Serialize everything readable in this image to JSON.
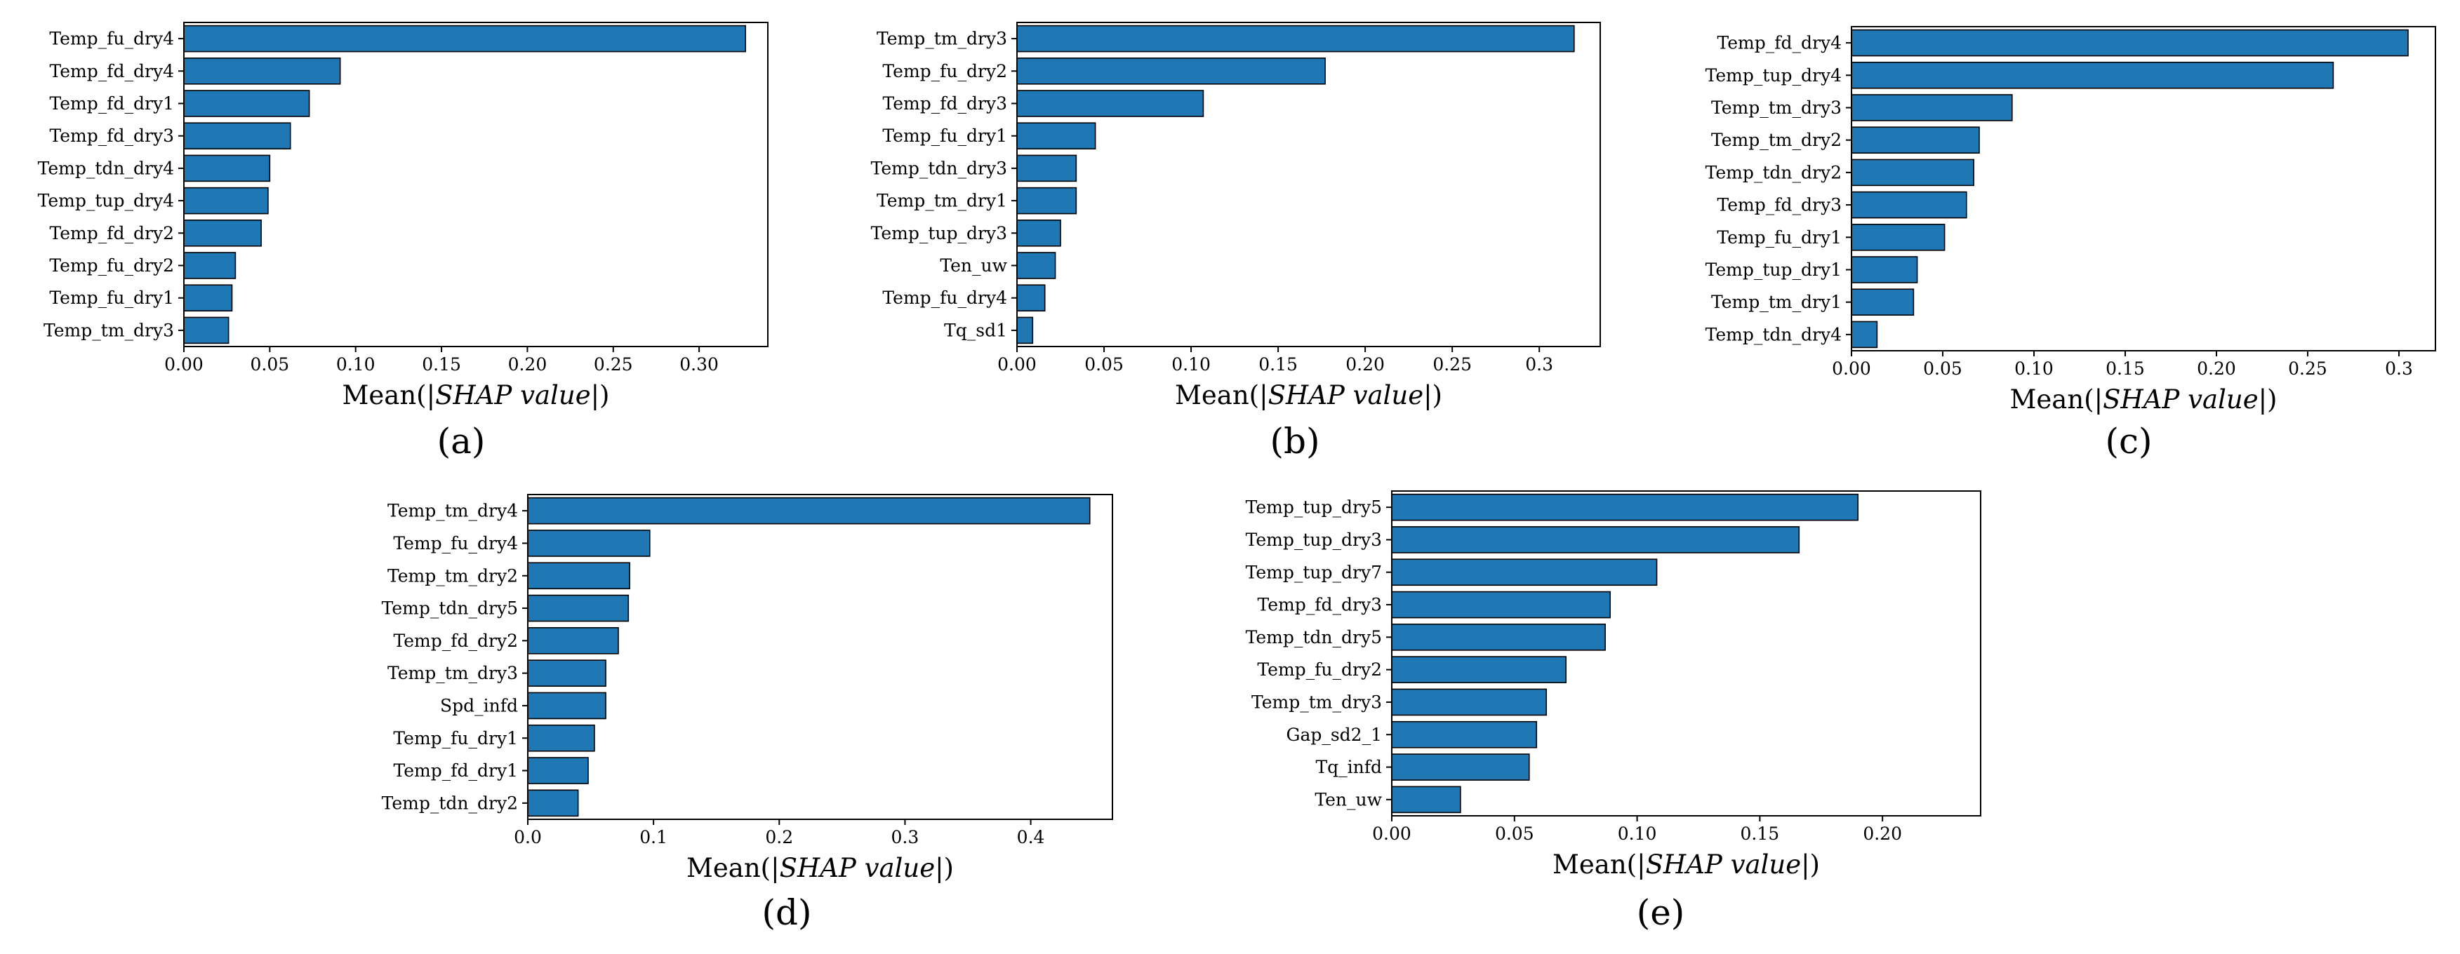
{
  "colors": {
    "bar": "#1f77b4",
    "edge": "#000000"
  },
  "chart_data": [
    {
      "type": "bar",
      "orientation": "horizontal",
      "panel_label": "(a)",
      "xlabel": {
        "prefix": "Mean(|",
        "italic": "SHAP value",
        "suffix": "|)"
      },
      "xlim": [
        0,
        0.34
      ],
      "xticks": [
        0,
        0.05,
        0.1,
        0.15,
        0.2,
        0.25,
        0.3
      ],
      "xtick_labels": [
        "0.00",
        "0.05",
        "0.10",
        "0.15",
        "0.20",
        "0.25",
        "0.30"
      ],
      "categories": [
        "Temp_fu_dry4",
        "Temp_fd_dry4",
        "Temp_fd_dry1",
        "Temp_fd_dry3",
        "Temp_tdn_dry4",
        "Temp_tup_dry4",
        "Temp_fd_dry2",
        "Temp_fu_dry2",
        "Temp_fu_dry1",
        "Temp_tm_dry3"
      ],
      "values": [
        0.327,
        0.091,
        0.073,
        0.062,
        0.05,
        0.049,
        0.045,
        0.03,
        0.028,
        0.026
      ]
    },
    {
      "type": "bar",
      "orientation": "horizontal",
      "panel_label": "(b)",
      "xlabel": {
        "prefix": "Mean(|",
        "italic": "SHAP value",
        "suffix": "|)"
      },
      "xlim": [
        0,
        0.335
      ],
      "xticks": [
        0,
        0.05,
        0.1,
        0.15,
        0.2,
        0.25,
        0.3
      ],
      "xtick_labels": [
        "0.00",
        "0.05",
        "0.10",
        "0.15",
        "0.20",
        "0.25",
        "0.3"
      ],
      "categories": [
        "Temp_tm_dry3",
        "Temp_fu_dry2",
        "Temp_fd_dry3",
        "Temp_fu_dry1",
        "Temp_tdn_dry3",
        "Temp_tm_dry1",
        "Temp_tup_dry3",
        "Ten_uw",
        "Temp_fu_dry4",
        "Tq_sd1"
      ],
      "values": [
        0.32,
        0.177,
        0.107,
        0.045,
        0.034,
        0.034,
        0.025,
        0.022,
        0.016,
        0.009
      ]
    },
    {
      "type": "bar",
      "orientation": "horizontal",
      "panel_label": "(c)",
      "xlabel": {
        "prefix": "Mean(|",
        "italic": "SHAP value",
        "suffix": "|)"
      },
      "xlim": [
        0,
        0.32
      ],
      "xticks": [
        0,
        0.05,
        0.1,
        0.15,
        0.2,
        0.25,
        0.3
      ],
      "xtick_labels": [
        "0.00",
        "0.05",
        "0.10",
        "0.15",
        "0.20",
        "0.25",
        "0.3"
      ],
      "categories": [
        "Temp_fd_dry4",
        "Temp_tup_dry4",
        "Temp_tm_dry3",
        "Temp_tm_dry2",
        "Temp_tdn_dry2",
        "Temp_fd_dry3",
        "Temp_fu_dry1",
        "Temp_tup_dry1",
        "Temp_tm_dry1",
        "Temp_tdn_dry4"
      ],
      "values": [
        0.305,
        0.264,
        0.088,
        0.07,
        0.067,
        0.063,
        0.051,
        0.036,
        0.034,
        0.014
      ]
    },
    {
      "type": "bar",
      "orientation": "horizontal",
      "panel_label": "(d)",
      "xlabel": {
        "prefix": "Mean(|",
        "italic": "SHAP value",
        "suffix": "|)"
      },
      "xlim": [
        0,
        0.465
      ],
      "xticks": [
        0,
        0.1,
        0.2,
        0.3,
        0.4
      ],
      "xtick_labels": [
        "0.0",
        "0.1",
        "0.2",
        "0.3",
        "0.4"
      ],
      "categories": [
        "Temp_tm_dry4",
        "Temp_fu_dry4",
        "Temp_tm_dry2",
        "Temp_tdn_dry5",
        "Temp_fd_dry2",
        "Temp_tm_dry3",
        "Spd_infd",
        "Temp_fu_dry1",
        "Temp_fd_dry1",
        "Temp_tdn_dry2"
      ],
      "values": [
        0.447,
        0.097,
        0.081,
        0.08,
        0.072,
        0.062,
        0.062,
        0.053,
        0.048,
        0.04
      ]
    },
    {
      "type": "bar",
      "orientation": "horizontal",
      "panel_label": "(e)",
      "xlabel": {
        "prefix": "Mean(|",
        "italic": "SHAP value",
        "suffix": "|)"
      },
      "xlim": [
        0,
        0.24
      ],
      "xticks": [
        0,
        0.05,
        0.1,
        0.15,
        0.2
      ],
      "xtick_labels": [
        "0.00",
        "0.05",
        "0.10",
        "0.15",
        "0.20"
      ],
      "categories": [
        "Temp_tup_dry5",
        "Temp_tup_dry3",
        "Temp_tup_dry7",
        "Temp_fd_dry3",
        "Temp_tdn_dry5",
        "Temp_fu_dry2",
        "Temp_tm_dry3",
        "Gap_sd2_1",
        "Tq_infd",
        "Ten_uw"
      ],
      "values": [
        0.19,
        0.166,
        0.108,
        0.089,
        0.087,
        0.071,
        0.063,
        0.059,
        0.056,
        0.028
      ]
    }
  ]
}
